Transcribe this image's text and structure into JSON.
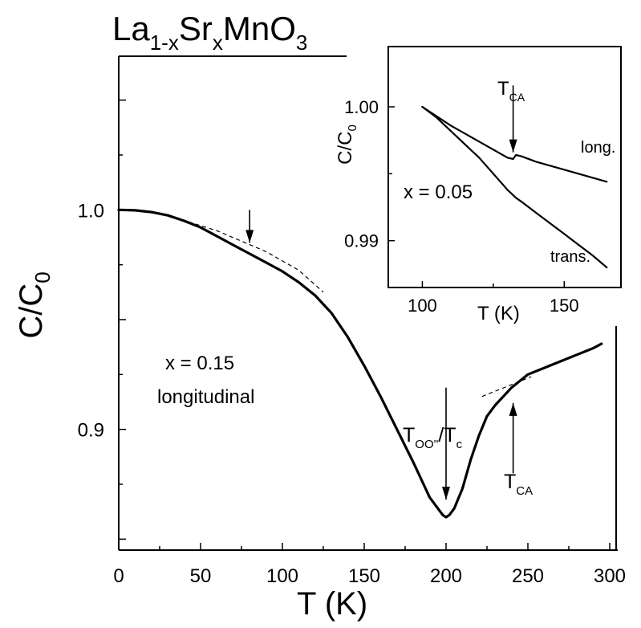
{
  "chart_data": [
    {
      "type": "line",
      "title_parts": {
        "base": "La",
        "sub1": "1-x",
        "mid": "Sr",
        "sub2": "x",
        "end": "MnO",
        "sub3": "3"
      },
      "xlabel": "T (K)",
      "ylabel_main": "C/C",
      "ylabel_sub": "0",
      "xlim": [
        0,
        300
      ],
      "ylim": [
        0.845,
        1.07
      ],
      "xticks": [
        "0",
        "50",
        "100",
        "150",
        "200",
        "250",
        "300"
      ],
      "yticks": [
        "0.9",
        "1.0"
      ],
      "sample_label": "x = 0.15",
      "mode_label": "longitudinal",
      "annotations": {
        "t_oo": {
          "main": "T",
          "sub": "OO''",
          "rest": "/T",
          "sub2": "c"
        },
        "t_ca": {
          "main": "T",
          "sub": "CA"
        }
      },
      "series": [
        {
          "x": [
            0,
            10,
            20,
            30,
            40,
            50,
            60,
            70,
            80,
            90,
            100,
            110,
            120,
            130,
            140,
            150,
            160,
            170,
            180,
            185,
            190,
            195,
            198,
            200,
            202,
            205,
            210,
            215,
            220,
            225,
            230,
            235,
            240,
            245,
            250,
            260,
            270,
            280,
            290,
            295
          ],
          "y": [
            1.0,
            0.9998,
            0.999,
            0.9975,
            0.995,
            0.992,
            0.988,
            0.984,
            0.98,
            0.976,
            0.972,
            0.967,
            0.961,
            0.953,
            0.942,
            0.929,
            0.915,
            0.9,
            0.885,
            0.877,
            0.869,
            0.864,
            0.861,
            0.86,
            0.861,
            0.864,
            0.873,
            0.886,
            0.897,
            0.906,
            0.911,
            0.915,
            0.919,
            0.922,
            0.925,
            0.928,
            0.931,
            0.934,
            0.937,
            0.939
          ]
        }
      ],
      "dashed_guides": [
        {
          "x": [
            30,
            60,
            90,
            110,
            125
          ],
          "y": [
            0.9975,
            0.9905,
            0.981,
            0.9725,
            0.9625
          ]
        },
        {
          "x": [
            222,
            232,
            242,
            252
          ],
          "y": [
            0.915,
            0.918,
            0.921,
            0.924
          ]
        }
      ],
      "arrows": [
        {
          "x": 80,
          "y_from": 1.0,
          "y_to": 0.985
        },
        {
          "x": 200,
          "y_from": 0.919,
          "y_to": 0.868
        },
        {
          "x": 241,
          "y_from": 0.88,
          "y_to": 0.912
        }
      ]
    },
    {
      "type": "line",
      "inset": true,
      "ylabel_main": "C/C",
      "ylabel_sub": "0",
      "xlabel": "T (K)",
      "xlim": [
        88,
        170
      ],
      "ylim": [
        0.9865,
        1.0045
      ],
      "xticks": [
        "100",
        "150"
      ],
      "yticks": [
        "1.00",
        "0.99"
      ],
      "sample_label": "x = 0.05",
      "annotation": {
        "main": "T",
        "sub": "CA"
      },
      "series": [
        {
          "name": "long.",
          "x": [
            100,
            105,
            110,
            115,
            120,
            125,
            130,
            132,
            133,
            135,
            140,
            145,
            150,
            155,
            160,
            165
          ],
          "y": [
            1.0,
            0.9993,
            0.9986,
            0.998,
            0.9974,
            0.9968,
            0.9962,
            0.9961,
            0.9964,
            0.9963,
            0.9959,
            0.9956,
            0.9953,
            0.995,
            0.9947,
            0.9944
          ]
        },
        {
          "name": "trans.",
          "x": [
            100,
            105,
            110,
            115,
            120,
            125,
            130,
            133,
            135,
            140,
            145,
            150,
            155,
            160,
            165
          ],
          "y": [
            1.0,
            0.9992,
            0.9982,
            0.9972,
            0.9962,
            0.995,
            0.9938,
            0.9932,
            0.9929,
            0.9921,
            0.9913,
            0.9905,
            0.9897,
            0.9889,
            0.988
          ]
        }
      ],
      "arrow": {
        "x": 132,
        "y_from": 1.0016,
        "y_to": 0.9966
      }
    }
  ]
}
